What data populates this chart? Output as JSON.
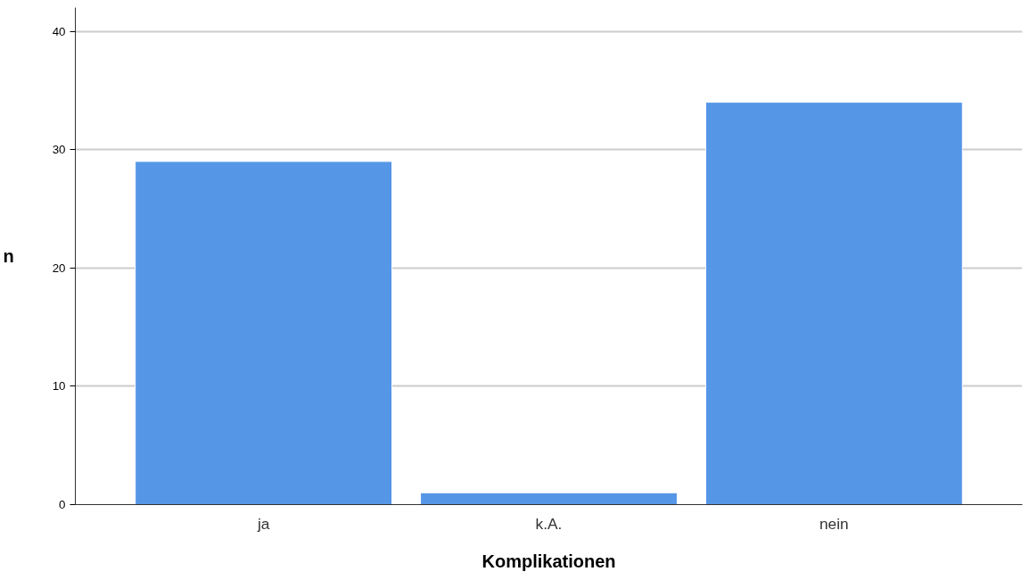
{
  "chart_data": {
    "type": "bar",
    "xlabel": "Komplikationen",
    "ylabel": "n",
    "categories": [
      "ja",
      "k.A.",
      "nein"
    ],
    "values": [
      29,
      1,
      34
    ],
    "color": "#5596e6",
    "ylim": [
      0,
      42
    ],
    "yticks": [
      0,
      10,
      20,
      30,
      40
    ],
    "grid": "y"
  }
}
